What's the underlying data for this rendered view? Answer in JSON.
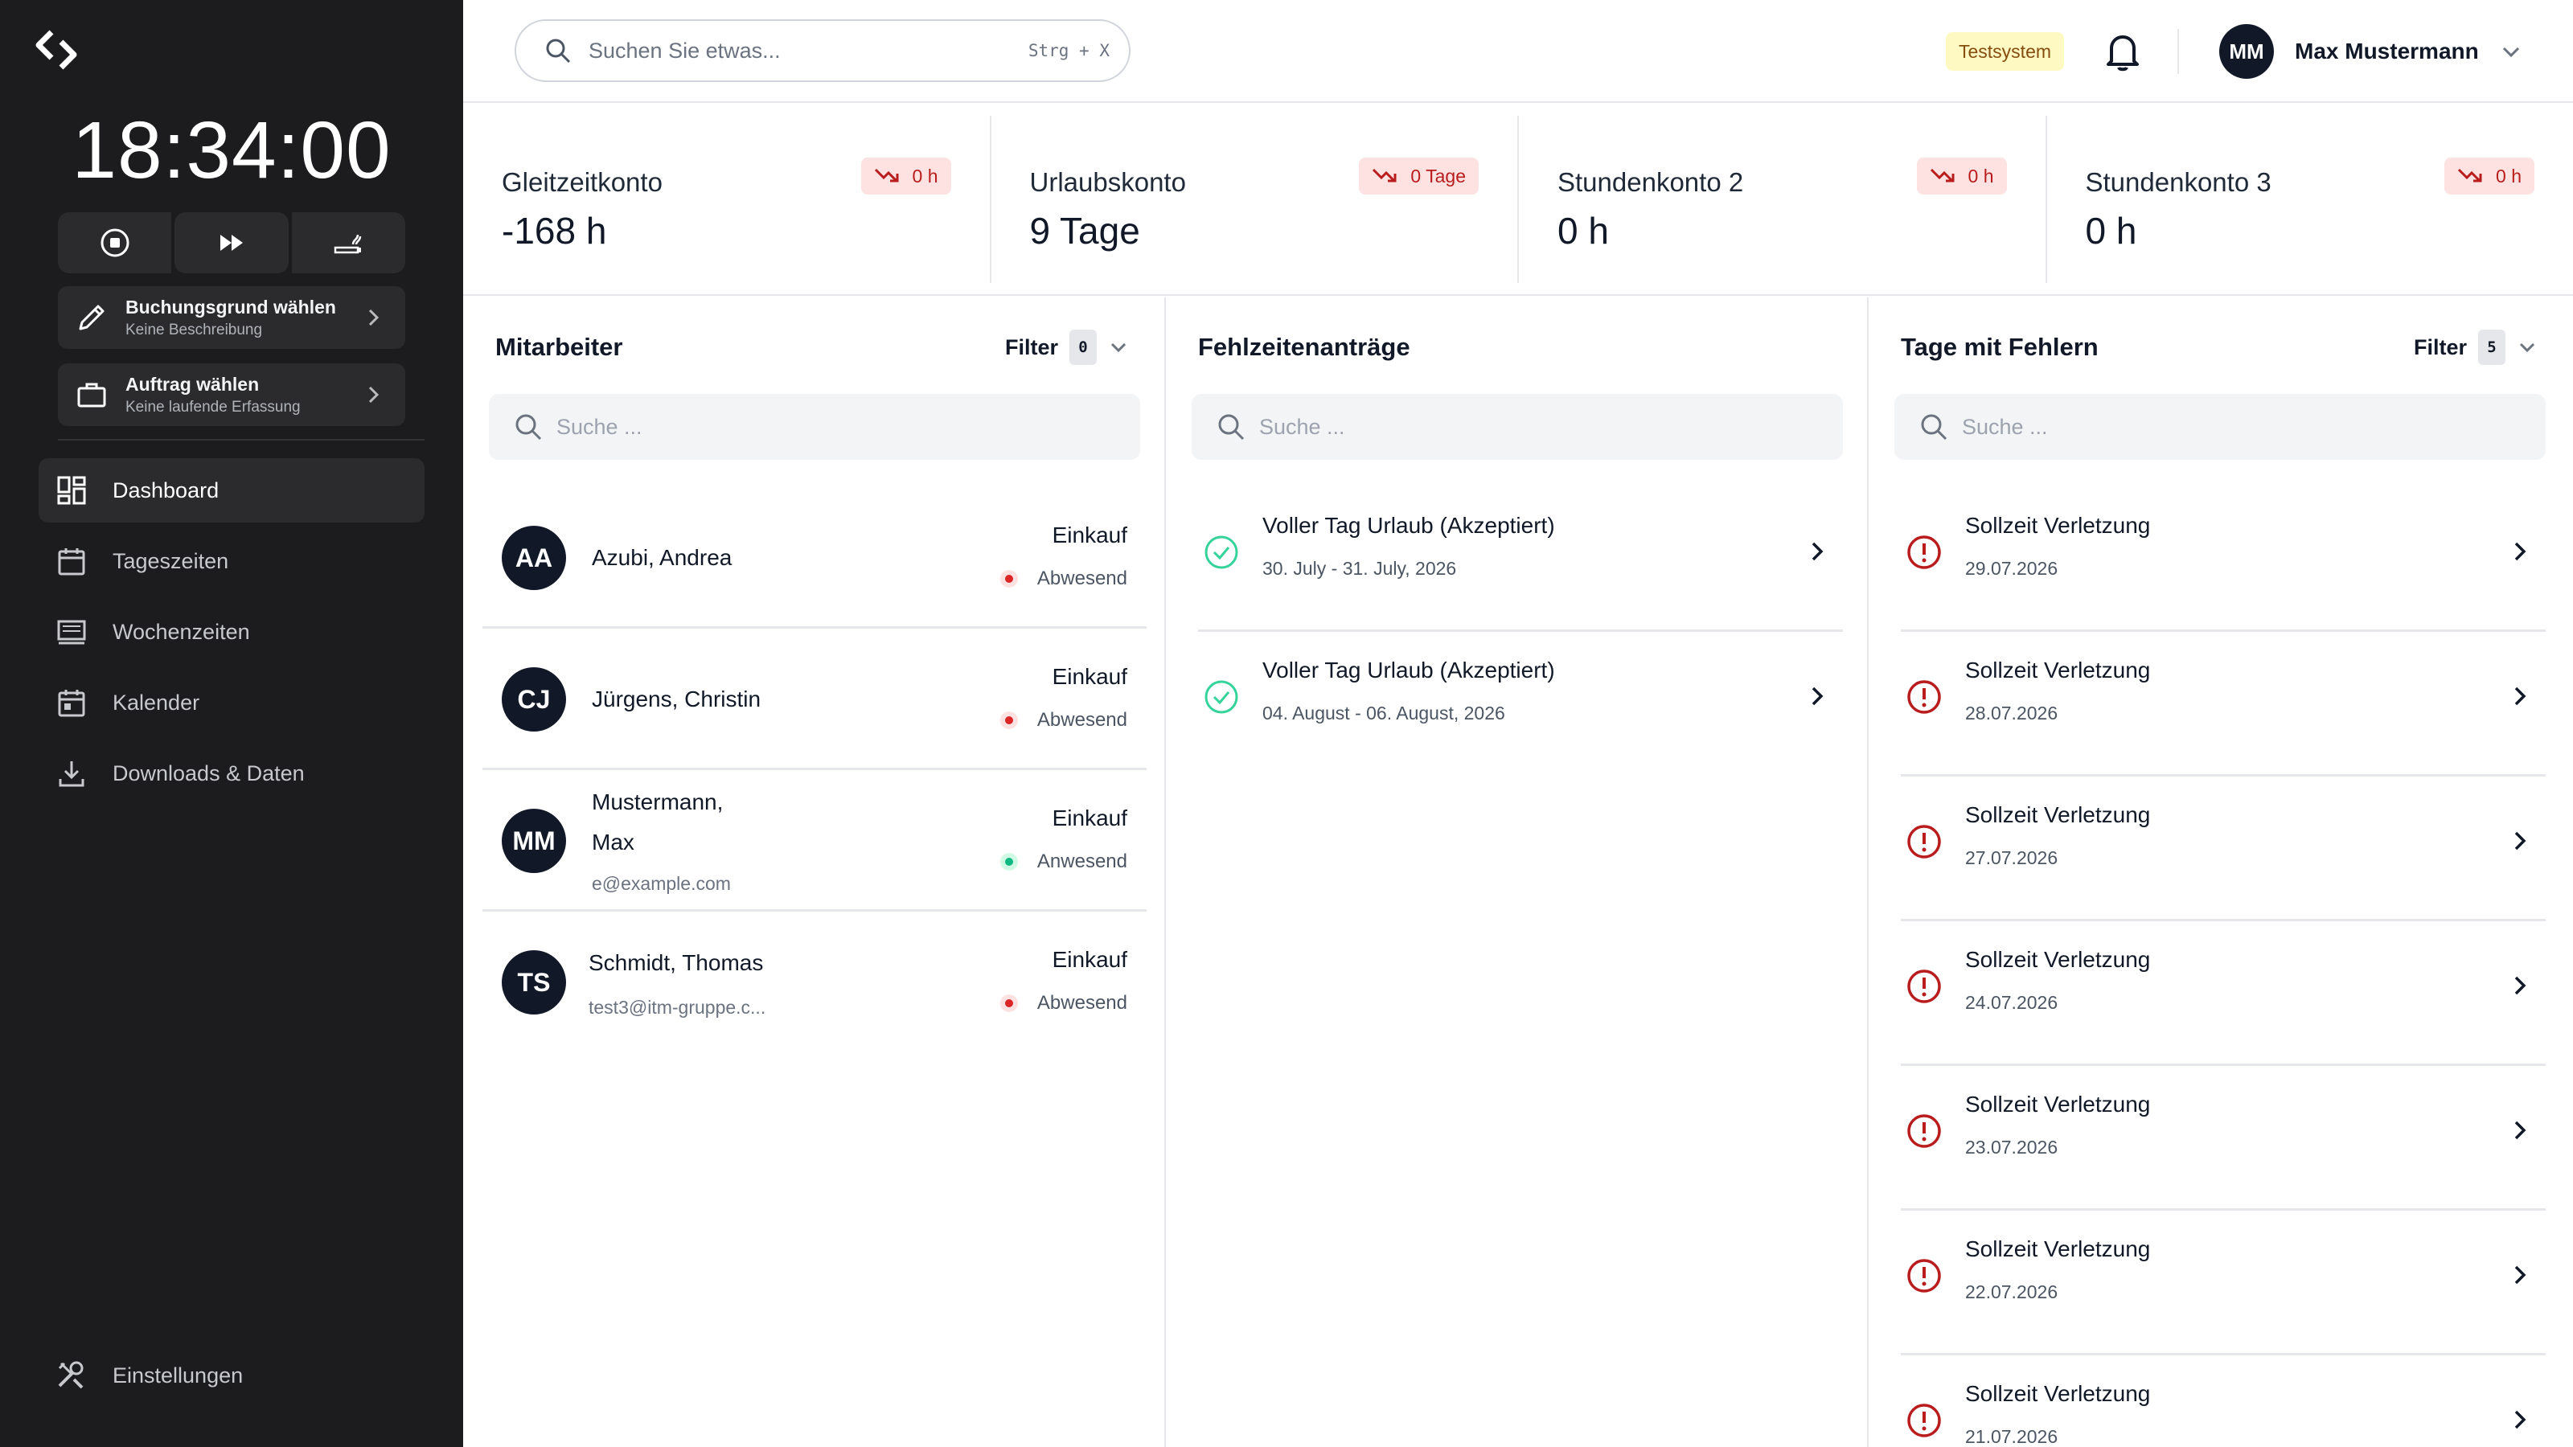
{
  "sidebar": {
    "clock": "18:34:00",
    "booking": {
      "title": "Buchungsgrund wählen",
      "subtitle": "Keine Beschreibung"
    },
    "order": {
      "title": "Auftrag wählen",
      "subtitle": "Keine laufende Erfassung"
    },
    "nav": [
      {
        "label": "Dashboard",
        "icon": "dashboard-icon",
        "active": true
      },
      {
        "label": "Tageszeiten",
        "icon": "calendar-icon"
      },
      {
        "label": "Wochenzeiten",
        "icon": "week-icon"
      },
      {
        "label": "Kalender",
        "icon": "calendar-icon"
      },
      {
        "label": "Downloads & Daten",
        "icon": "download-icon"
      }
    ],
    "settings": "Einstellungen"
  },
  "header": {
    "search_placeholder": "Suchen Sie etwas...",
    "shortcut": "Strg + X",
    "env_badge": "Testsystem",
    "user": {
      "initials": "MM",
      "name": "Max Mustermann"
    }
  },
  "stats": [
    {
      "label": "Gleitzeitkonto",
      "value": "-168 h",
      "trend": "0 h"
    },
    {
      "label": "Urlaubskonto",
      "value": "9 Tage",
      "trend": "0 Tage"
    },
    {
      "label": "Stundenkonto 2",
      "value": "0 h",
      "trend": "0 h"
    },
    {
      "label": "Stundenkonto 3",
      "value": "0 h",
      "trend": "0 h"
    }
  ],
  "employees": {
    "title": "Mitarbeiter",
    "filter_label": "Filter",
    "filter_count": "0",
    "search_placeholder": "Suche ...",
    "items": [
      {
        "initials": "AA",
        "name_line1": "Azubi, Andrea",
        "name_line2": "",
        "email": "",
        "dept": "Einkauf",
        "status": "Abwesend",
        "status_color": "#dc2626"
      },
      {
        "initials": "CJ",
        "name_line1": "Jürgens, Christin",
        "name_line2": "",
        "email": "",
        "dept": "Einkauf",
        "status": "Abwesend",
        "status_color": "#dc2626"
      },
      {
        "initials": "MM",
        "name_line1": "Mustermann,",
        "name_line2": "Max",
        "email": "e@example.com",
        "dept": "Einkauf",
        "status": "Anwesend",
        "status_color": "#10b981"
      },
      {
        "initials": "TS",
        "name_line1": "Schmidt, Thomas",
        "name_line2": "",
        "email": "test3@itm-gruppe.c...",
        "dept": "Einkauf",
        "status": "Abwesend",
        "status_color": "#dc2626"
      }
    ]
  },
  "requests": {
    "title": "Fehlzeitenanträge",
    "search_placeholder": "Suche ...",
    "items": [
      {
        "title": "Voller Tag Urlaub (Akzeptiert)",
        "dates": "30. July - 31. July, 2026"
      },
      {
        "title": "Voller Tag Urlaub (Akzeptiert)",
        "dates": "04. August - 06. August, 2026"
      }
    ]
  },
  "errors": {
    "title": "Tage mit Fehlern",
    "filter_label": "Filter",
    "filter_count": "5",
    "search_placeholder": "Suche ...",
    "items": [
      {
        "title": "Sollzeit Verletzung",
        "date": "29.07.2026"
      },
      {
        "title": "Sollzeit Verletzung",
        "date": "28.07.2026"
      },
      {
        "title": "Sollzeit Verletzung",
        "date": "27.07.2026"
      },
      {
        "title": "Sollzeit Verletzung",
        "date": "24.07.2026"
      },
      {
        "title": "Sollzeit Verletzung",
        "date": "23.07.2026"
      },
      {
        "title": "Sollzeit Verletzung",
        "date": "22.07.2026"
      },
      {
        "title": "Sollzeit Verletzung",
        "date": "21.07.2026"
      }
    ]
  },
  "colors": {
    "sidebar_bg": "#1c1c1e",
    "accent_error": "#b91c1c",
    "accent_success": "#10b981",
    "env_badge_bg": "#fef9c3"
  }
}
